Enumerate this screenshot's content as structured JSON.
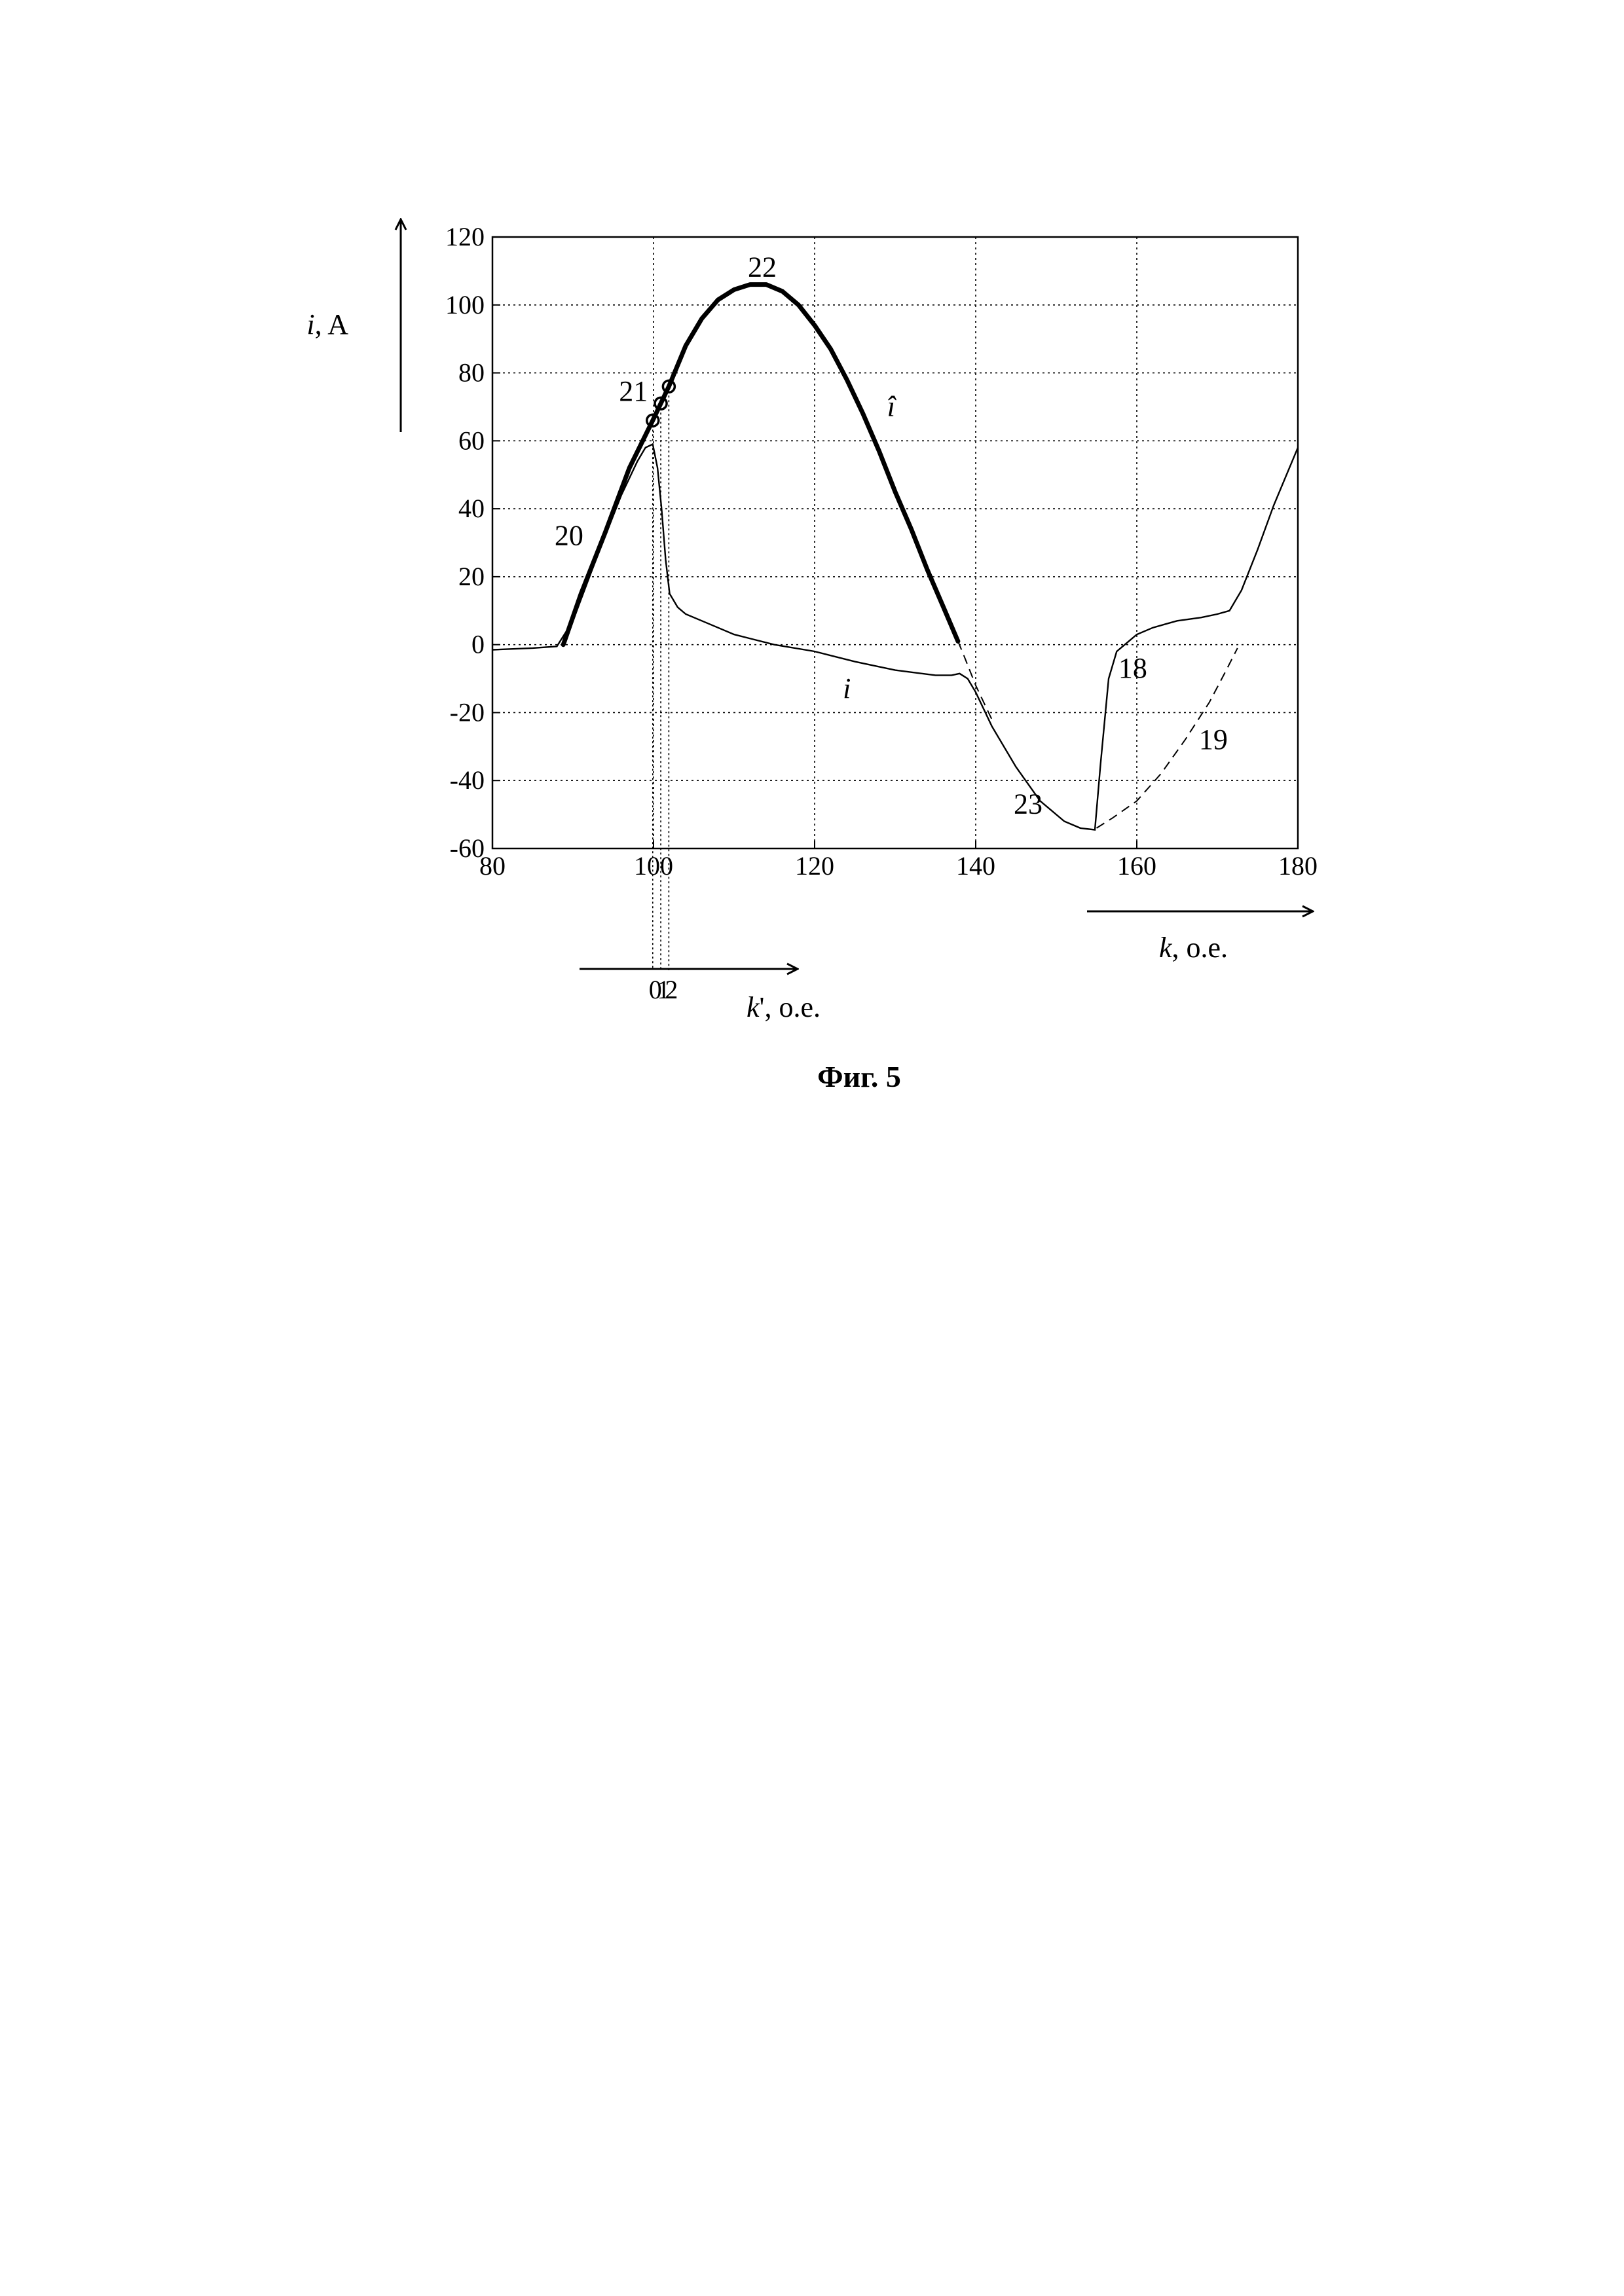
{
  "chart_data": {
    "type": "line",
    "xlabel_var": "k",
    "xlabel_unit": ", о.е.",
    "ylabel_var": "i",
    "ylabel_unit": ", A",
    "xlim": [
      80,
      180
    ],
    "ylim": [
      -60,
      120
    ],
    "xticks": [
      80,
      100,
      120,
      140,
      160,
      180
    ],
    "yticks": [
      -60,
      -40,
      -20,
      0,
      20,
      40,
      60,
      80,
      100,
      120
    ],
    "grid": true,
    "secondary_axis": {
      "label_var": "k",
      "label_mark": "'",
      "label_unit": ", о.е.",
      "tick_labels": [
        "0",
        "1",
        "2"
      ],
      "tick_positions_k": [
        99.9,
        100.9,
        101.9
      ]
    },
    "series": [
      {
        "name": "i",
        "style": "thin",
        "x": [
          80,
          85,
          88,
          90,
          93,
          96,
          98,
          99,
          99.9,
          100.5,
          101,
          101.5,
          102,
          103,
          104,
          106,
          108,
          110,
          115,
          120,
          125,
          130,
          135,
          137,
          138,
          139,
          140,
          142,
          145,
          148,
          151,
          153,
          154.8,
          155.5,
          156.5,
          157.5,
          158.5,
          160,
          162,
          165,
          168,
          170,
          171.5,
          173,
          175,
          177,
          180
        ],
        "y": [
          -1.5,
          -1,
          -0.5,
          7,
          26,
          44,
          54,
          58,
          59,
          52,
          40,
          25,
          15,
          11,
          9,
          7,
          5,
          3,
          0,
          -2,
          -5,
          -7.5,
          -9,
          -9,
          -8.5,
          -10,
          -14,
          -24,
          -36,
          -46,
          -52,
          -54,
          -54.5,
          -35,
          -10,
          -2,
          0,
          3,
          5,
          7,
          8,
          9,
          10,
          16,
          28,
          41,
          58
        ]
      },
      {
        "name": "î",
        "style": "thick",
        "x": [
          88.8,
          91,
          94,
          97,
          99.9,
          100.9,
          101.9,
          104,
          106,
          108,
          110,
          112,
          114,
          116,
          118,
          120,
          122,
          124,
          126,
          128,
          130,
          132,
          134,
          136,
          137.8
        ],
        "y": [
          0,
          15,
          33,
          52,
          66,
          71,
          76,
          88,
          96,
          101.5,
          104.5,
          106,
          106,
          104,
          100,
          94,
          87,
          78,
          68,
          57,
          45,
          34,
          22,
          11,
          1
        ]
      },
      {
        "name": "",
        "style": "dashed",
        "x": [
          137.8,
          138.5,
          139,
          140,
          142
        ],
        "y": [
          1,
          -3,
          -6,
          -12,
          -22
        ]
      },
      {
        "name": "",
        "style": "dashed",
        "x": [
          155,
          157,
          160,
          163,
          166,
          169,
          171,
          172.5
        ],
        "y": [
          -54,
          -51,
          -46,
          -38,
          -28,
          -17,
          -8,
          -1
        ]
      }
    ],
    "markers": [
      {
        "x": 99.9,
        "y": 66
      },
      {
        "x": 100.9,
        "y": 71
      },
      {
        "x": 101.9,
        "y": 76
      }
    ],
    "annotations": [
      {
        "text": "22",
        "x": 113.5,
        "y": 111
      },
      {
        "text": "21",
        "x": 97.5,
        "y": 74.5
      },
      {
        "text": "20",
        "x": 89.5,
        "y": 32
      },
      {
        "text": "î",
        "x": 129.5,
        "y": 70
      },
      {
        "text": "i",
        "x": 124,
        "y": -13
      },
      {
        "text": "23",
        "x": 146.5,
        "y": -47
      },
      {
        "text": "18",
        "x": 159.5,
        "y": -7
      },
      {
        "text": "19",
        "x": 169.5,
        "y": -28
      }
    ],
    "caption": "Фиг. 5"
  }
}
